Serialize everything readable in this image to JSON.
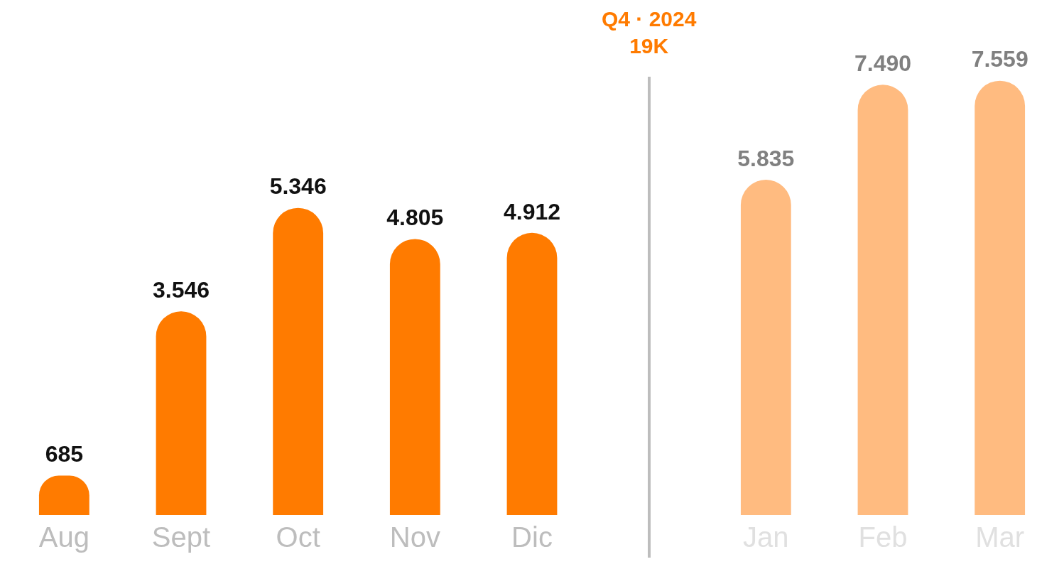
{
  "chart_data": {
    "type": "bar",
    "categories": [
      "Aug",
      "Sept",
      "Oct",
      "Nov",
      "Dic",
      null,
      "Jan",
      "Feb",
      "Mar"
    ],
    "values": [
      685,
      3546,
      5346,
      4805,
      4912,
      null,
      5835,
      7490,
      7559
    ],
    "colors": [
      "#ff7b00",
      "#ff7b00",
      "#ff7b00",
      "#ff7b00",
      "#ff7b00",
      "#ff7b00",
      "#ffbb80",
      "#ffbb80",
      "#ffbb80"
    ],
    "value_labels": [
      "685",
      "3.546",
      "5.346",
      "4.805",
      "4.912",
      null,
      "5.835",
      "7.490",
      "7.559"
    ],
    "annotations": [
      "Q4 · 2024",
      "19K"
    ],
    "legend": false,
    "grid": false
  }
}
